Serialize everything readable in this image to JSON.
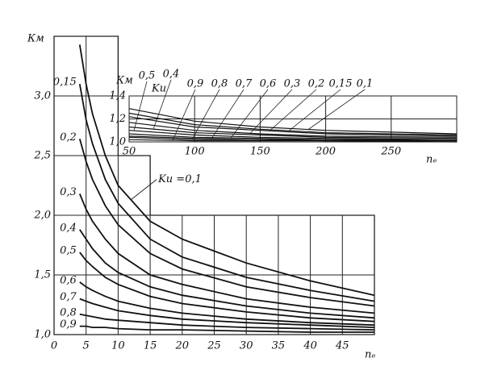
{
  "chart_data": [
    {
      "type": "line",
      "y_label": "Км",
      "x_label": "nₑ",
      "color": "#111",
      "grid": true,
      "xlim": [
        0,
        50
      ],
      "ylim": [
        1,
        3.5
      ],
      "xticks": [
        0,
        5,
        10,
        15,
        20,
        25,
        30,
        35,
        40,
        45
      ],
      "yticks": [
        {
          "value": 1,
          "label": "1,0"
        },
        {
          "value": 1.5,
          "label": "1,5"
        },
        {
          "value": 2,
          "label": "2,0"
        },
        {
          "value": 2.5,
          "label": "2,5"
        },
        {
          "value": 3,
          "label": "3,0"
        }
      ],
      "x": [
        4,
        5,
        6,
        8,
        10,
        15,
        20,
        30,
        40,
        50
      ],
      "series": [
        {
          "name": "Kи =0,1",
          "values": [
            3.43,
            3.1,
            2.85,
            2.5,
            2.25,
            1.95,
            1.8,
            1.6,
            1.45,
            1.33
          ]
        },
        {
          "name": "0,15",
          "values": [
            3.1,
            2.8,
            2.6,
            2.3,
            2.1,
            1.8,
            1.65,
            1.48,
            1.37,
            1.28
          ]
        },
        {
          "name": "0,2",
          "values": [
            2.64,
            2.45,
            2.3,
            2.08,
            1.92,
            1.68,
            1.55,
            1.4,
            1.31,
            1.24
          ]
        },
        {
          "name": "0,3",
          "values": [
            2.18,
            2.05,
            1.95,
            1.8,
            1.68,
            1.5,
            1.42,
            1.3,
            1.23,
            1.18
          ]
        },
        {
          "name": "0,4",
          "values": [
            1.88,
            1.8,
            1.72,
            1.6,
            1.52,
            1.4,
            1.33,
            1.24,
            1.18,
            1.14
          ]
        },
        {
          "name": "0,5",
          "values": [
            1.69,
            1.62,
            1.57,
            1.48,
            1.42,
            1.32,
            1.26,
            1.19,
            1.14,
            1.11
          ]
        },
        {
          "name": "0,6",
          "values": [
            1.44,
            1.4,
            1.37,
            1.32,
            1.28,
            1.22,
            1.18,
            1.13,
            1.1,
            1.08
          ]
        },
        {
          "name": "0,7",
          "values": [
            1.3,
            1.28,
            1.26,
            1.23,
            1.2,
            1.16,
            1.13,
            1.1,
            1.08,
            1.06
          ]
        },
        {
          "name": "0,8",
          "values": [
            1.17,
            1.16,
            1.15,
            1.13,
            1.12,
            1.1,
            1.08,
            1.06,
            1.05,
            1.04
          ]
        },
        {
          "name": "0,9",
          "values": [
            1.07,
            1.07,
            1.06,
            1.06,
            1.05,
            1.04,
            1.04,
            1.03,
            1.02,
            1.02
          ]
        }
      ]
    },
    {
      "type": "line",
      "y_label": "Км",
      "x_label": "nₑ",
      "legend_title": "Kи",
      "color": "#111",
      "grid": true,
      "xlim": [
        50,
        300
      ],
      "ylim": [
        1,
        1.4
      ],
      "xticks": [
        50,
        100,
        150,
        200,
        250
      ],
      "yticks": [
        {
          "value": 1,
          "label": "1,0"
        },
        {
          "value": 1.2,
          "label": "1,2"
        },
        {
          "value": 1.4,
          "label": "1,4"
        }
      ],
      "x": [
        50,
        100,
        150,
        200,
        300
      ],
      "series": [
        {
          "name": "0,5",
          "values": [
            1.1,
            1.06,
            1.04,
            1.03,
            1.02
          ]
        },
        {
          "name": "0,4",
          "values": [
            1.13,
            1.08,
            1.06,
            1.04,
            1.03
          ]
        },
        {
          "name": "0,9",
          "values": [
            1.02,
            1.01,
            1.01,
            1.01,
            1.0
          ]
        },
        {
          "name": "0,8",
          "values": [
            1.04,
            1.02,
            1.02,
            1.01,
            1.01
          ]
        },
        {
          "name": "0,7",
          "values": [
            1.05,
            1.03,
            1.02,
            1.02,
            1.01
          ]
        },
        {
          "name": "0,6",
          "values": [
            1.07,
            1.04,
            1.03,
            1.02,
            1.02
          ]
        },
        {
          "name": "0,3",
          "values": [
            1.17,
            1.1,
            1.07,
            1.05,
            1.04
          ]
        },
        {
          "name": "0,2",
          "values": [
            1.22,
            1.13,
            1.1,
            1.07,
            1.05
          ]
        },
        {
          "name": "0,15",
          "values": [
            1.25,
            1.15,
            1.11,
            1.08,
            1.06
          ]
        },
        {
          "name": "0,1",
          "values": [
            1.29,
            1.18,
            1.13,
            1.1,
            1.07
          ]
        }
      ]
    }
  ]
}
